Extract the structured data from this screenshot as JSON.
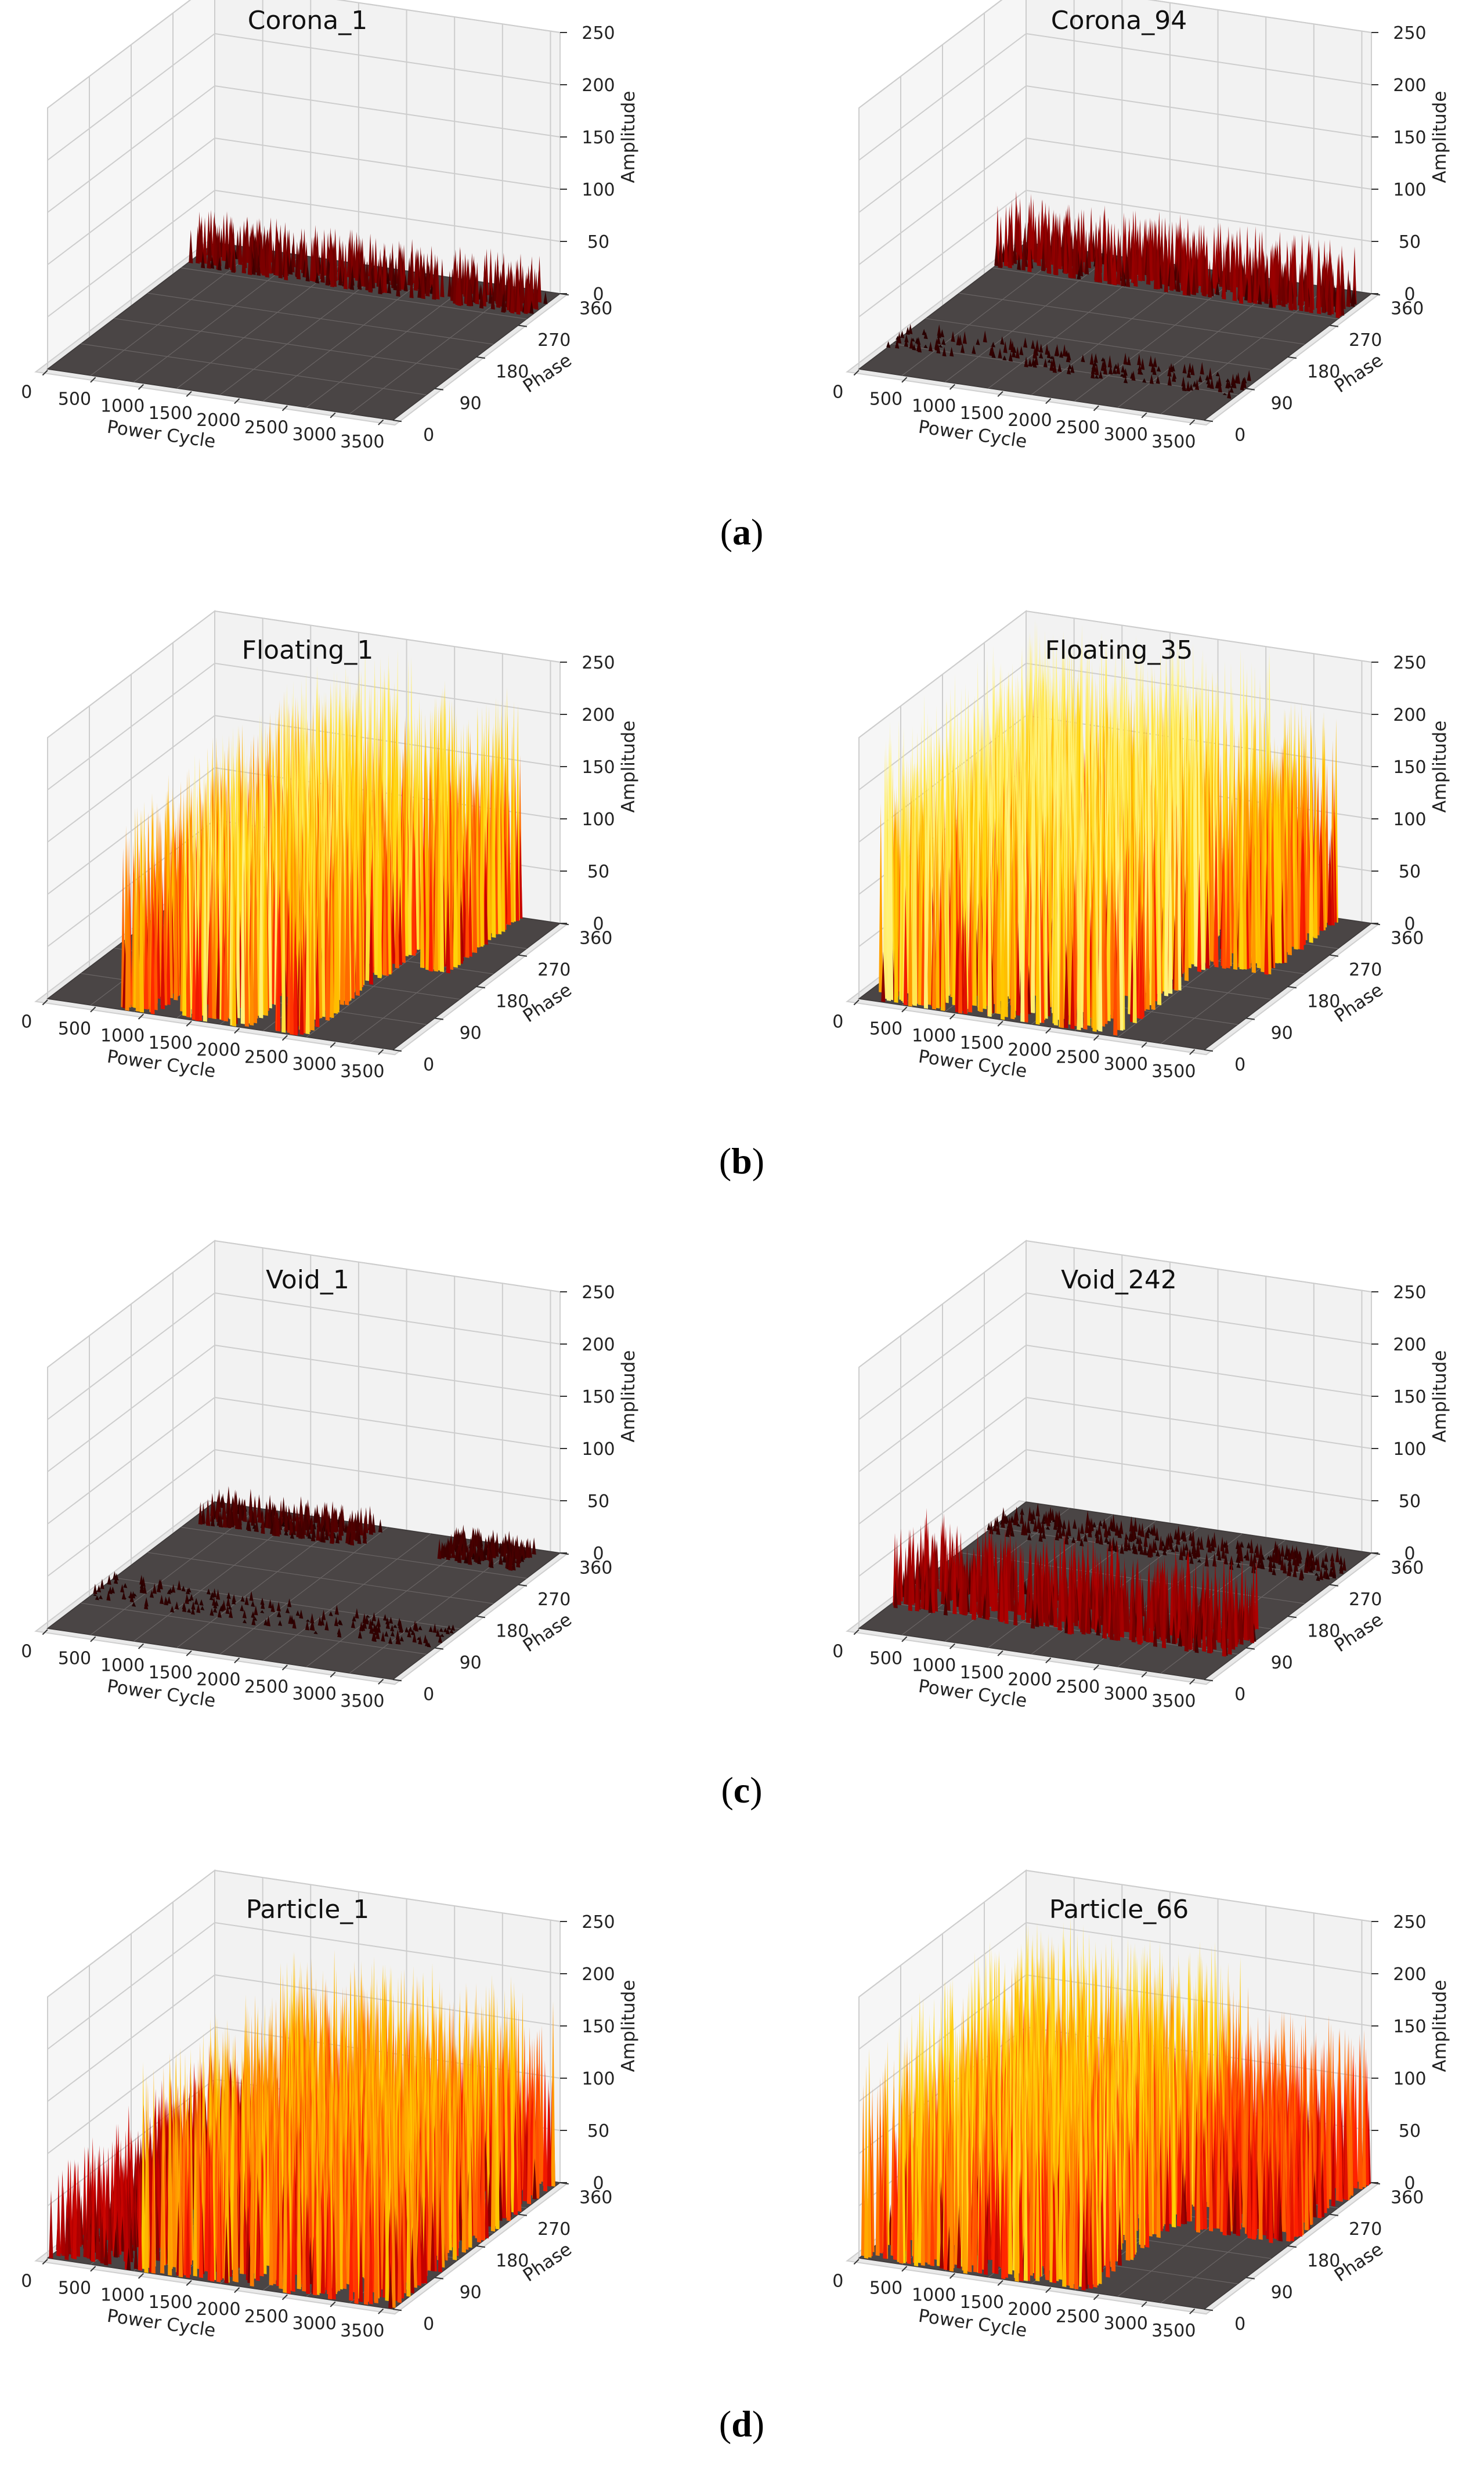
{
  "chart_data": [
    {
      "type": "surface3d",
      "panel_id": "corona-1",
      "title": "Corona_1",
      "row": 0,
      "col": 0,
      "xlabel": "Power Cycle",
      "ylabel": "Phase",
      "zlabel": "Amplitude",
      "xticks": [
        "0",
        "500",
        "1000",
        "1500",
        "2000",
        "2500",
        "3000",
        "3500"
      ],
      "xlim": [
        0,
        3600
      ],
      "yticks": [
        "0",
        "90",
        "180",
        "270",
        "360"
      ],
      "ylim": [
        0,
        360
      ],
      "zticks": [
        "0",
        "50",
        "100",
        "150",
        "200",
        "250"
      ],
      "zlim": [
        0,
        250
      ],
      "activity": [
        {
          "phase": [
            295,
            335
          ],
          "cycles": [
            0,
            3600
          ],
          "peak": 45,
          "density": 0.9
        }
      ]
    },
    {
      "type": "surface3d",
      "panel_id": "corona-94",
      "title": "Corona_94",
      "row": 0,
      "col": 1,
      "xlabel": "Power Cycle",
      "ylabel": "Phase",
      "zlabel": "Amplitude",
      "xticks": [
        "0",
        "500",
        "1000",
        "1500",
        "2000",
        "2500",
        "3000",
        "3500"
      ],
      "xlim": [
        0,
        3600
      ],
      "yticks": [
        "0",
        "90",
        "180",
        "270",
        "360"
      ],
      "ylim": [
        0,
        360
      ],
      "zticks": [
        "0",
        "50",
        "100",
        "150",
        "200",
        "250"
      ],
      "zlim": [
        0,
        250
      ],
      "activity": [
        {
          "phase": [
            290,
            340
          ],
          "cycles": [
            0,
            3600
          ],
          "peak": 60,
          "density": 0.9
        },
        {
          "phase": [
            60,
            110
          ],
          "cycles": [
            0,
            3600
          ],
          "peak": 12,
          "density": 0.35
        }
      ]
    },
    {
      "type": "surface3d",
      "panel_id": "floating-1",
      "title": "Floating_1",
      "row": 1,
      "col": 0,
      "xlabel": "Power Cycle",
      "ylabel": "Phase",
      "zlabel": "Amplitude",
      "xticks": [
        "0",
        "500",
        "1000",
        "1500",
        "2000",
        "2500",
        "3000",
        "3500"
      ],
      "xlim": [
        0,
        3600
      ],
      "yticks": [
        "0",
        "90",
        "180",
        "270",
        "360"
      ],
      "ylim": [
        0,
        360
      ],
      "zticks": [
        "0",
        "50",
        "100",
        "150",
        "200",
        "250"
      ],
      "zlim": [
        0,
        250
      ],
      "activity": [
        {
          "phase": [
            0,
            360
          ],
          "cycles": [
            750,
            1150
          ],
          "peak": 195,
          "density": 0.95
        },
        {
          "phase": [
            0,
            360
          ],
          "cycles": [
            1300,
            2100
          ],
          "peak": 245,
          "density": 0.95
        },
        {
          "phase": [
            0,
            360
          ],
          "cycles": [
            2350,
            2700
          ],
          "peak": 225,
          "density": 0.95
        },
        {
          "phase": [
            200,
            360
          ],
          "cycles": [
            2900,
            3200
          ],
          "peak": 220,
          "density": 0.9
        }
      ]
    },
    {
      "type": "surface3d",
      "panel_id": "floating-35",
      "title": "Floating_35",
      "row": 1,
      "col": 1,
      "xlabel": "Power Cycle",
      "ylabel": "Phase",
      "zlabel": "Amplitude",
      "xticks": [
        "0",
        "500",
        "1000",
        "1500",
        "2000",
        "2500",
        "3000",
        "3500"
      ],
      "xlim": [
        0,
        3600
      ],
      "yticks": [
        "0",
        "90",
        "180",
        "270",
        "360"
      ],
      "ylim": [
        0,
        360
      ],
      "zticks": [
        "0",
        "50",
        "100",
        "150",
        "200",
        "250"
      ],
      "zlim": [
        0,
        250
      ],
      "activity": [
        {
          "phase": [
            0,
            360
          ],
          "cycles": [
            100,
            2700
          ],
          "peak": 255,
          "density": 1.0
        },
        {
          "phase": [
            200,
            360
          ],
          "cycles": [
            2700,
            3300
          ],
          "peak": 210,
          "density": 0.8
        }
      ]
    },
    {
      "type": "surface3d",
      "panel_id": "void-1",
      "title": "Void_1",
      "row": 2,
      "col": 0,
      "xlabel": "Power Cycle",
      "ylabel": "Phase",
      "zlabel": "Amplitude",
      "xticks": [
        "0",
        "500",
        "1000",
        "1500",
        "2000",
        "2500",
        "3000",
        "3500"
      ],
      "xlim": [
        0,
        3600
      ],
      "yticks": [
        "0",
        "90",
        "180",
        "270",
        "360"
      ],
      "ylim": [
        0,
        360
      ],
      "zticks": [
        "0",
        "50",
        "100",
        "150",
        "200",
        "250"
      ],
      "zlim": [
        0,
        250
      ],
      "activity": [
        {
          "phase": [
            300,
            350
          ],
          "cycles": [
            100,
            1800
          ],
          "peak": 25,
          "density": 0.7
        },
        {
          "phase": [
            300,
            350
          ],
          "cycles": [
            2600,
            3400
          ],
          "peak": 20,
          "density": 0.7
        },
        {
          "phase": [
            80,
            140
          ],
          "cycles": [
            0,
            3600
          ],
          "peak": 10,
          "density": 0.35
        }
      ]
    },
    {
      "type": "surface3d",
      "panel_id": "void-242",
      "title": "Void_242",
      "row": 2,
      "col": 1,
      "xlabel": "Power Cycle",
      "ylabel": "Phase",
      "zlabel": "Amplitude",
      "xticks": [
        "0",
        "500",
        "1000",
        "1500",
        "2000",
        "2500",
        "3000",
        "3500"
      ],
      "xlim": [
        0,
        3600
      ],
      "yticks": [
        "0",
        "90",
        "180",
        "270",
        "360"
      ],
      "ylim": [
        0,
        360
      ],
      "zticks": [
        "0",
        "50",
        "100",
        "150",
        "200",
        "250"
      ],
      "zlim": [
        0,
        250
      ],
      "activity": [
        {
          "phase": [
            60,
            140
          ],
          "cycles": [
            0,
            3600
          ],
          "peak": 70,
          "density": 0.85
        },
        {
          "phase": [
            270,
            330
          ],
          "cycles": [
            0,
            3600
          ],
          "peak": 15,
          "density": 0.55
        }
      ]
    },
    {
      "type": "surface3d",
      "panel_id": "particle-1",
      "title": "Particle_1",
      "row": 3,
      "col": 0,
      "xlabel": "Power Cycle",
      "ylabel": "Phase",
      "zlabel": "Amplitude",
      "xticks": [
        "0",
        "500",
        "1000",
        "1500",
        "2000",
        "2500",
        "3000",
        "3500"
      ],
      "xlim": [
        0,
        3600
      ],
      "yticks": [
        "0",
        "90",
        "180",
        "270",
        "360"
      ],
      "ylim": [
        0,
        360
      ],
      "zticks": [
        "0",
        "50",
        "100",
        "150",
        "200",
        "250"
      ],
      "zlim": [
        0,
        250
      ],
      "activity": [
        {
          "phase": [
            0,
            360
          ],
          "cycles": [
            0,
            900
          ],
          "peak": 90,
          "density": 0.7
        },
        {
          "phase": [
            0,
            360
          ],
          "cycles": [
            900,
            3600
          ],
          "peak": 200,
          "density": 0.9
        }
      ]
    },
    {
      "type": "surface3d",
      "panel_id": "particle-66",
      "title": "Particle_66",
      "row": 3,
      "col": 1,
      "xlabel": "Power Cycle",
      "ylabel": "Phase",
      "zlabel": "Amplitude",
      "xticks": [
        "0",
        "500",
        "1000",
        "1500",
        "2000",
        "2500",
        "3000",
        "3500"
      ],
      "xlim": [
        0,
        3600
      ],
      "yticks": [
        "0",
        "90",
        "180",
        "270",
        "360"
      ],
      "ylim": [
        0,
        360
      ],
      "zticks": [
        "0",
        "50",
        "100",
        "150",
        "200",
        "250"
      ],
      "zlim": [
        0,
        250
      ],
      "activity": [
        {
          "phase": [
            0,
            360
          ],
          "cycles": [
            0,
            2400
          ],
          "peak": 215,
          "density": 0.95
        },
        {
          "phase": [
            180,
            360
          ],
          "cycles": [
            2400,
            3600
          ],
          "peak": 160,
          "density": 0.8
        }
      ]
    }
  ],
  "captions": [
    {
      "open": "(",
      "letter": "a",
      "close": ")"
    },
    {
      "open": "(",
      "letter": "b",
      "close": ")"
    },
    {
      "open": "(",
      "letter": "c",
      "close": ")"
    },
    {
      "open": "(",
      "letter": "d",
      "close": ")"
    }
  ],
  "colors": {
    "base": "#4a4545",
    "colormap": [
      "#1a0000",
      "#7a0000",
      "#c00000",
      "#ff2000",
      "#ff7a00",
      "#ffd000",
      "#fff27a"
    ]
  }
}
